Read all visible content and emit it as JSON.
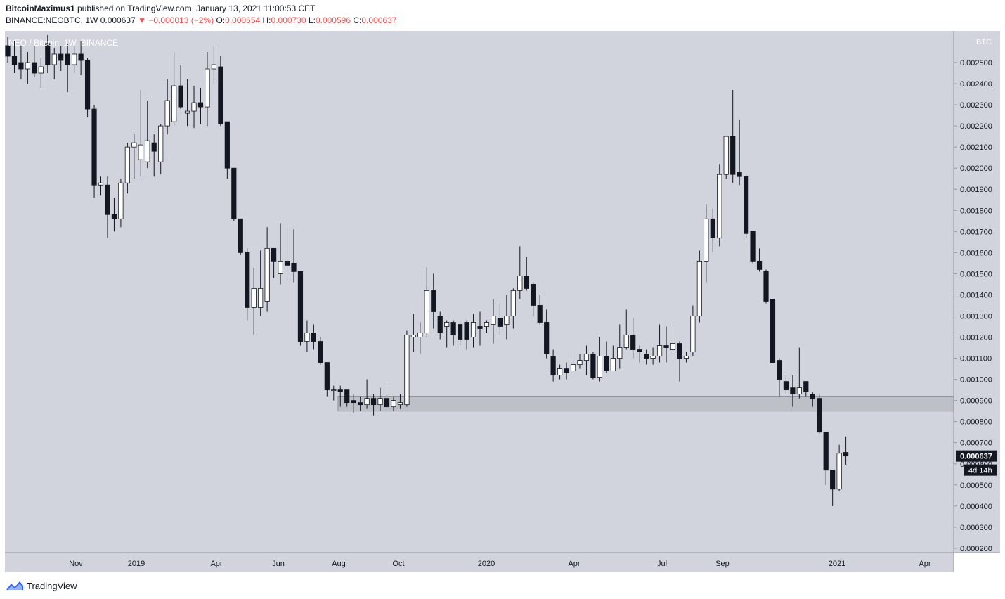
{
  "header": {
    "author": "BitcoinMaximus1",
    "published_text": "published on TradingView.com, January 13, 2021 11:00:53 CET",
    "symbol": "BINANCE:NEOBTC, 1W",
    "last": "0.000637",
    "change": "−0.000013 (−2%)",
    "o_label": "O:",
    "o_value": "0.000654",
    "h_label": "H:",
    "h_value": "0.000730",
    "l_label": "L:",
    "l_value": "0.000596",
    "c_label": "C:",
    "c_value": "0.000637"
  },
  "chart_title": "NEO / Bitcoin, 1W, BINANCE",
  "price_scale_unit": "BTC",
  "last_price_label": "0.000637",
  "countdown_label": "4d 14h",
  "footer": {
    "brand": "TradingView"
  },
  "colors": {
    "bg": "#d1d4dc",
    "up": "#ffffff",
    "down": "#131722",
    "zone": "#a6a8ae",
    "down_text": "#ef5350"
  },
  "chart_data": {
    "type": "candlestick",
    "title": "NEO / Bitcoin, 1W, BINANCE",
    "y_unit": "BTC",
    "ylim": [
      0.0002,
      0.0026
    ],
    "y_ticks": [
      "0.002500",
      "0.002400",
      "0.002300",
      "0.002200",
      "0.002100",
      "0.002000",
      "0.001900",
      "0.001800",
      "0.001700",
      "0.001600",
      "0.001500",
      "0.001400",
      "0.001300",
      "0.001200",
      "0.001100",
      "0.001000",
      "0.000900",
      "0.000800",
      "0.000700",
      "0.000600",
      "0.000500",
      "0.000400",
      "0.000300",
      "0.000200"
    ],
    "x_ticks": [
      "Nov",
      "2019",
      "Apr",
      "Jun",
      "Aug",
      "Oct",
      "2020",
      "Apr",
      "Jul",
      "Sep",
      "2021",
      "Apr"
    ],
    "support_zone": [
      0.00085,
      0.00092
    ],
    "candles": [
      {
        "o": 0.00258,
        "h": 0.00262,
        "l": 0.0025,
        "c": 0.00253
      },
      {
        "o": 0.00253,
        "h": 0.0026,
        "l": 0.00245,
        "c": 0.00249
      },
      {
        "o": 0.0025,
        "h": 0.00258,
        "l": 0.00242,
        "c": 0.00247
      },
      {
        "o": 0.00247,
        "h": 0.00255,
        "l": 0.0024,
        "c": 0.0025
      },
      {
        "o": 0.0025,
        "h": 0.00258,
        "l": 0.00243,
        "c": 0.00245
      },
      {
        "o": 0.00245,
        "h": 0.00252,
        "l": 0.00238,
        "c": 0.00248
      },
      {
        "o": 0.00259,
        "h": 0.00263,
        "l": 0.00245,
        "c": 0.00249
      },
      {
        "o": 0.00249,
        "h": 0.00257,
        "l": 0.00242,
        "c": 0.00254
      },
      {
        "o": 0.00254,
        "h": 0.00258,
        "l": 0.00246,
        "c": 0.00251
      },
      {
        "o": 0.00254,
        "h": 0.00259,
        "l": 0.00236,
        "c": 0.00249
      },
      {
        "o": 0.00249,
        "h": 0.00258,
        "l": 0.00245,
        "c": 0.00254
      },
      {
        "o": 0.00254,
        "h": 0.0026,
        "l": 0.00244,
        "c": 0.00251
      },
      {
        "o": 0.00251,
        "h": 0.00252,
        "l": 0.00224,
        "c": 0.00228
      },
      {
        "o": 0.00228,
        "h": 0.0023,
        "l": 0.00186,
        "c": 0.00192
      },
      {
        "o": 0.00192,
        "h": 0.00196,
        "l": 0.00187,
        "c": 0.00193
      },
      {
        "o": 0.00192,
        "h": 0.00196,
        "l": 0.00167,
        "c": 0.00178
      },
      {
        "o": 0.00178,
        "h": 0.00186,
        "l": 0.0017,
        "c": 0.00176
      },
      {
        "o": 0.00176,
        "h": 0.00195,
        "l": 0.00172,
        "c": 0.00193
      },
      {
        "o": 0.00193,
        "h": 0.00212,
        "l": 0.00188,
        "c": 0.0021
      },
      {
        "o": 0.0021,
        "h": 0.00216,
        "l": 0.00195,
        "c": 0.00212
      },
      {
        "o": 0.00204,
        "h": 0.00237,
        "l": 0.00196,
        "c": 0.00211
      },
      {
        "o": 0.00203,
        "h": 0.00232,
        "l": 0.002,
        "c": 0.00213
      },
      {
        "o": 0.00212,
        "h": 0.00216,
        "l": 0.00196,
        "c": 0.00208
      },
      {
        "o": 0.00203,
        "h": 0.00221,
        "l": 0.00197,
        "c": 0.0022
      },
      {
        "o": 0.0022,
        "h": 0.00242,
        "l": 0.00216,
        "c": 0.00232
      },
      {
        "o": 0.00222,
        "h": 0.00255,
        "l": 0.0022,
        "c": 0.00239
      },
      {
        "o": 0.00239,
        "h": 0.00249,
        "l": 0.00228,
        "c": 0.00229
      },
      {
        "o": 0.00226,
        "h": 0.00242,
        "l": 0.0022,
        "c": 0.00227
      },
      {
        "o": 0.00227,
        "h": 0.00239,
        "l": 0.00219,
        "c": 0.00231
      },
      {
        "o": 0.00231,
        "h": 0.00238,
        "l": 0.00221,
        "c": 0.00229
      },
      {
        "o": 0.00229,
        "h": 0.00255,
        "l": 0.0022,
        "c": 0.00247
      },
      {
        "o": 0.00247,
        "h": 0.00258,
        "l": 0.0024,
        "c": 0.00249
      },
      {
        "o": 0.00248,
        "h": 0.00253,
        "l": 0.0022,
        "c": 0.00221
      },
      {
        "o": 0.00222,
        "h": 0.00222,
        "l": 0.00195,
        "c": 0.002
      },
      {
        "o": 0.002,
        "h": 0.002,
        "l": 0.00175,
        "c": 0.00176
      },
      {
        "o": 0.00176,
        "h": 0.00176,
        "l": 0.00159,
        "c": 0.0016
      },
      {
        "o": 0.0016,
        "h": 0.00162,
        "l": 0.00128,
        "c": 0.00134
      },
      {
        "o": 0.00134,
        "h": 0.00153,
        "l": 0.00121,
        "c": 0.00143
      },
      {
        "o": 0.00134,
        "h": 0.00161,
        "l": 0.0013,
        "c": 0.00143
      },
      {
        "o": 0.00137,
        "h": 0.00172,
        "l": 0.00132,
        "c": 0.00162
      },
      {
        "o": 0.00162,
        "h": 0.00162,
        "l": 0.00148,
        "c": 0.00156
      },
      {
        "o": 0.0015,
        "h": 0.00174,
        "l": 0.00145,
        "c": 0.00156
      },
      {
        "o": 0.00156,
        "h": 0.00172,
        "l": 0.00147,
        "c": 0.00154
      },
      {
        "o": 0.00155,
        "h": 0.00171,
        "l": 0.00146,
        "c": 0.00151
      },
      {
        "o": 0.00151,
        "h": 0.0015,
        "l": 0.00116,
        "c": 0.00118
      },
      {
        "o": 0.00118,
        "h": 0.00128,
        "l": 0.00113,
        "c": 0.00122
      },
      {
        "o": 0.00122,
        "h": 0.00126,
        "l": 0.00114,
        "c": 0.00118
      },
      {
        "o": 0.00118,
        "h": 0.0012,
        "l": 0.00107,
        "c": 0.00108
      },
      {
        "o": 0.00108,
        "h": 0.00108,
        "l": 0.00092,
        "c": 0.00095
      },
      {
        "o": 0.00095,
        "h": 0.00097,
        "l": 0.0009,
        "c": 0.00095
      },
      {
        "o": 0.00095,
        "h": 0.00097,
        "l": 0.00087,
        "c": 0.00094
      },
      {
        "o": 0.00095,
        "h": 0.00095,
        "l": 0.00087,
        "c": 0.00089
      },
      {
        "o": 0.0009,
        "h": 0.00093,
        "l": 0.00084,
        "c": 0.00089
      },
      {
        "o": 0.00089,
        "h": 0.00092,
        "l": 0.00085,
        "c": 0.00088
      },
      {
        "o": 0.00088,
        "h": 0.001,
        "l": 0.00086,
        "c": 0.00091
      },
      {
        "o": 0.00091,
        "h": 0.00093,
        "l": 0.00083,
        "c": 0.00088
      },
      {
        "o": 0.00088,
        "h": 0.00096,
        "l": 0.00085,
        "c": 0.00091
      },
      {
        "o": 0.00091,
        "h": 0.00098,
        "l": 0.00086,
        "c": 0.00087
      },
      {
        "o": 0.00087,
        "h": 0.00092,
        "l": 0.00085,
        "c": 0.0009
      },
      {
        "o": 0.00088,
        "h": 0.00093,
        "l": 0.00086,
        "c": 0.00089
      },
      {
        "o": 0.00088,
        "h": 0.00123,
        "l": 0.00087,
        "c": 0.00121
      },
      {
        "o": 0.0012,
        "h": 0.00131,
        "l": 0.00113,
        "c": 0.00121
      },
      {
        "o": 0.0012,
        "h": 0.00127,
        "l": 0.00112,
        "c": 0.00122
      },
      {
        "o": 0.00122,
        "h": 0.00153,
        "l": 0.0012,
        "c": 0.00142
      },
      {
        "o": 0.00142,
        "h": 0.0015,
        "l": 0.00124,
        "c": 0.00132
      },
      {
        "o": 0.0013,
        "h": 0.00132,
        "l": 0.00119,
        "c": 0.00122
      },
      {
        "o": 0.00125,
        "h": 0.00128,
        "l": 0.00115,
        "c": 0.00127
      },
      {
        "o": 0.00127,
        "h": 0.00128,
        "l": 0.00116,
        "c": 0.00121
      },
      {
        "o": 0.00126,
        "h": 0.00127,
        "l": 0.00116,
        "c": 0.00119
      },
      {
        "o": 0.00127,
        "h": 0.00128,
        "l": 0.00114,
        "c": 0.00119
      },
      {
        "o": 0.0012,
        "h": 0.00131,
        "l": 0.00115,
        "c": 0.00127
      },
      {
        "o": 0.00125,
        "h": 0.00132,
        "l": 0.00116,
        "c": 0.00124
      },
      {
        "o": 0.00125,
        "h": 0.00128,
        "l": 0.00122,
        "c": 0.00127
      },
      {
        "o": 0.00126,
        "h": 0.00138,
        "l": 0.00117,
        "c": 0.0013
      },
      {
        "o": 0.00129,
        "h": 0.00136,
        "l": 0.00121,
        "c": 0.00125
      },
      {
        "o": 0.00126,
        "h": 0.0014,
        "l": 0.00119,
        "c": 0.0013
      },
      {
        "o": 0.0013,
        "h": 0.00143,
        "l": 0.00124,
        "c": 0.00142
      },
      {
        "o": 0.00142,
        "h": 0.00163,
        "l": 0.00138,
        "c": 0.00149
      },
      {
        "o": 0.00149,
        "h": 0.00158,
        "l": 0.00142,
        "c": 0.00143
      },
      {
        "o": 0.00145,
        "h": 0.00146,
        "l": 0.0013,
        "c": 0.00135
      },
      {
        "o": 0.00135,
        "h": 0.0014,
        "l": 0.00126,
        "c": 0.00127
      },
      {
        "o": 0.00127,
        "h": 0.00133,
        "l": 0.0011,
        "c": 0.00112
      },
      {
        "o": 0.00111,
        "h": 0.00114,
        "l": 0.00099,
        "c": 0.00102
      },
      {
        "o": 0.00102,
        "h": 0.00107,
        "l": 0.001,
        "c": 0.00105
      },
      {
        "o": 0.00105,
        "h": 0.00108,
        "l": 0.001,
        "c": 0.00103
      },
      {
        "o": 0.00104,
        "h": 0.0011,
        "l": 0.00103,
        "c": 0.00107
      },
      {
        "o": 0.00107,
        "h": 0.00112,
        "l": 0.00105,
        "c": 0.00109
      },
      {
        "o": 0.00109,
        "h": 0.00116,
        "l": 0.00102,
        "c": 0.00112
      },
      {
        "o": 0.00112,
        "h": 0.00113,
        "l": 0.001,
        "c": 0.00101
      },
      {
        "o": 0.00101,
        "h": 0.0012,
        "l": 0.00099,
        "c": 0.00111
      },
      {
        "o": 0.00111,
        "h": 0.00118,
        "l": 0.00103,
        "c": 0.00104
      },
      {
        "o": 0.00104,
        "h": 0.00116,
        "l": 0.00104,
        "c": 0.0011
      },
      {
        "o": 0.0011,
        "h": 0.00126,
        "l": 0.00105,
        "c": 0.00115
      },
      {
        "o": 0.00115,
        "h": 0.00133,
        "l": 0.00114,
        "c": 0.00121
      },
      {
        "o": 0.00121,
        "h": 0.00129,
        "l": 0.0011,
        "c": 0.00114
      },
      {
        "o": 0.00114,
        "h": 0.00116,
        "l": 0.00108,
        "c": 0.00113
      },
      {
        "o": 0.00112,
        "h": 0.00114,
        "l": 0.00107,
        "c": 0.0011
      },
      {
        "o": 0.0011,
        "h": 0.00115,
        "l": 0.00107,
        "c": 0.00111
      },
      {
        "o": 0.00111,
        "h": 0.00126,
        "l": 0.00108,
        "c": 0.00116
      },
      {
        "o": 0.00116,
        "h": 0.00125,
        "l": 0.00108,
        "c": 0.00115
      },
      {
        "o": 0.00114,
        "h": 0.00127,
        "l": 0.00109,
        "c": 0.00117
      },
      {
        "o": 0.00117,
        "h": 0.00118,
        "l": 0.00099,
        "c": 0.0011
      },
      {
        "o": 0.0011,
        "h": 0.00113,
        "l": 0.00108,
        "c": 0.00111
      },
      {
        "o": 0.00113,
        "h": 0.00135,
        "l": 0.00111,
        "c": 0.0013
      },
      {
        "o": 0.0013,
        "h": 0.00161,
        "l": 0.00127,
        "c": 0.00156
      },
      {
        "o": 0.00156,
        "h": 0.00183,
        "l": 0.00146,
        "c": 0.00176
      },
      {
        "o": 0.00176,
        "h": 0.00181,
        "l": 0.0016,
        "c": 0.00167
      },
      {
        "o": 0.00167,
        "h": 0.00202,
        "l": 0.00163,
        "c": 0.00197
      },
      {
        "o": 0.00197,
        "h": 0.00213,
        "l": 0.00195,
        "c": 0.00215
      },
      {
        "o": 0.00215,
        "h": 0.00237,
        "l": 0.00193,
        "c": 0.00197
      },
      {
        "o": 0.00198,
        "h": 0.00223,
        "l": 0.00192,
        "c": 0.00196
      },
      {
        "o": 0.00196,
        "h": 0.00197,
        "l": 0.00167,
        "c": 0.00169
      },
      {
        "o": 0.0017,
        "h": 0.0017,
        "l": 0.00155,
        "c": 0.00156
      },
      {
        "o": 0.00156,
        "h": 0.00162,
        "l": 0.00151,
        "c": 0.00152
      },
      {
        "o": 0.00151,
        "h": 0.00152,
        "l": 0.00136,
        "c": 0.00137
      },
      {
        "o": 0.00138,
        "h": 0.00137,
        "l": 0.00108,
        "c": 0.00108
      },
      {
        "o": 0.00109,
        "h": 0.0011,
        "l": 0.00092,
        "c": 0.001
      },
      {
        "o": 0.00099,
        "h": 0.00102,
        "l": 0.00093,
        "c": 0.00095
      },
      {
        "o": 0.00096,
        "h": 0.00102,
        "l": 0.00087,
        "c": 0.00093
      },
      {
        "o": 0.00093,
        "h": 0.00115,
        "l": 0.00091,
        "c": 0.00096
      },
      {
        "o": 0.00099,
        "h": 0.00099,
        "l": 0.00092,
        "c": 0.00094
      },
      {
        "o": 0.00093,
        "h": 0.00094,
        "l": 0.00087,
        "c": 0.00091
      },
      {
        "o": 0.00091,
        "h": 0.00093,
        "l": 0.00074,
        "c": 0.00075
      },
      {
        "o": 0.00075,
        "h": 0.00074,
        "l": 0.0005,
        "c": 0.00057
      },
      {
        "o": 0.00057,
        "h": 0.00057,
        "l": 0.0004,
        "c": 0.00048
      },
      {
        "o": 0.00048,
        "h": 0.00069,
        "l": 0.00047,
        "c": 0.00065
      },
      {
        "o": 0.000654,
        "h": 0.00073,
        "l": 0.000596,
        "c": 0.000637
      }
    ]
  }
}
